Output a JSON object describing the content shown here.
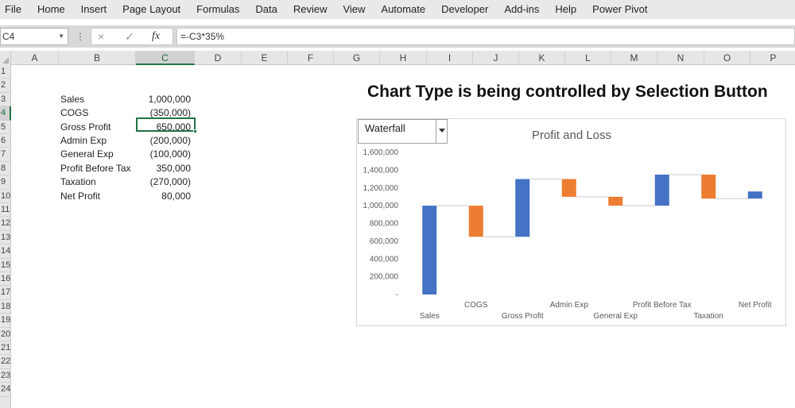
{
  "menu": [
    "File",
    "Home",
    "Insert",
    "Page Layout",
    "Formulas",
    "Data",
    "Review",
    "View",
    "Automate",
    "Developer",
    "Add-ins",
    "Help",
    "Power Pivot"
  ],
  "formula_bar": {
    "name_box": "C4",
    "formula": "=-C3*35%",
    "cancel_icon": "×",
    "enter_icon": "✓",
    "fx_icon": "fx"
  },
  "columns": [
    "A",
    "B",
    "C",
    "D",
    "E",
    "F",
    "G",
    "H",
    "I",
    "J",
    "K",
    "L",
    "M",
    "N",
    "O",
    "P"
  ],
  "selected_column": "C",
  "rows": [
    "1",
    "2",
    "3",
    "4",
    "5",
    "6",
    "7",
    "8",
    "9",
    "10",
    "11",
    "12",
    "13",
    "14",
    "15",
    "16",
    "17",
    "18",
    "19",
    "20",
    "21",
    "22",
    "23",
    "24"
  ],
  "selected_row": "4",
  "table": [
    {
      "label": "Sales",
      "value": "1,000,000"
    },
    {
      "label": "COGS",
      "value": "(350,000)"
    },
    {
      "label": "Gross Profit",
      "value": "650,000"
    },
    {
      "label": "Admin Exp",
      "value": "(200,000)"
    },
    {
      "label": "General Exp",
      "value": "(100,000)"
    },
    {
      "label": "Profit Before Tax",
      "value": "350,000"
    },
    {
      "label": "Taxation",
      "value": "(270,000)"
    },
    {
      "label": "Net Profit",
      "value": "80,000"
    }
  ],
  "sheet_title": "Chart Type is being controlled by Selection Button",
  "chart_selector": {
    "value": "Waterfall"
  },
  "colors": {
    "increase": "#4472c4",
    "decrease": "#ed7d31",
    "accent": "#217346"
  },
  "chart_data": {
    "type": "bar",
    "subtype": "waterfall",
    "title": "Profit and Loss",
    "categories": [
      "Sales",
      "COGS",
      "Gross Profit",
      "Admin Exp",
      "General Exp",
      "Profit Before Tax",
      "Taxation",
      "Net Profit"
    ],
    "bars": [
      {
        "from": 0,
        "to": 1000000,
        "kind": "increase"
      },
      {
        "from": 1000000,
        "to": 650000,
        "kind": "decrease"
      },
      {
        "from": 650000,
        "to": 1300000,
        "kind": "increase"
      },
      {
        "from": 1300000,
        "to": 1100000,
        "kind": "decrease"
      },
      {
        "from": 1100000,
        "to": 1000000,
        "kind": "decrease"
      },
      {
        "from": 1000000,
        "to": 1350000,
        "kind": "increase"
      },
      {
        "from": 1350000,
        "to": 1080000,
        "kind": "decrease"
      },
      {
        "from": 1080000,
        "to": 1160000,
        "kind": "increase"
      }
    ],
    "yticks": [
      "-",
      "200,000",
      "400,000",
      "600,000",
      "800,000",
      "1,000,000",
      "1,200,000",
      "1,400,000",
      "1,600,000"
    ],
    "ylim": [
      0,
      1600000
    ],
    "grid": false
  }
}
